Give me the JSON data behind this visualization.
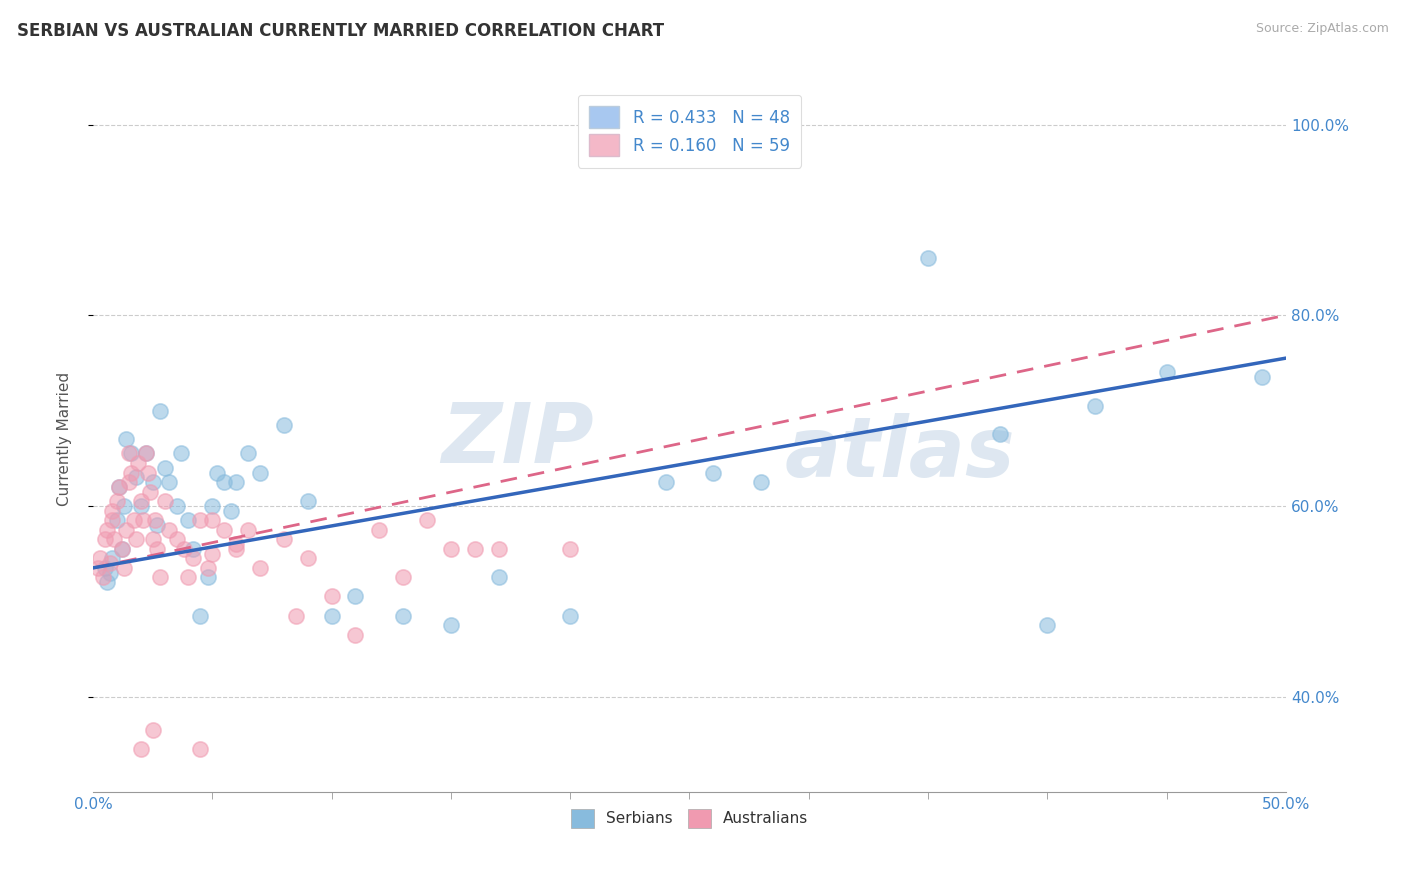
{
  "title": "SERBIAN VS AUSTRALIAN CURRENTLY MARRIED CORRELATION CHART",
  "source": "Source: ZipAtlas.com",
  "ylabel": "Currently Married",
  "legend_entries": [
    {
      "label": "R = 0.433   N = 48",
      "color": "#a8c8f0",
      "edgecolor": "#88aadd"
    },
    {
      "label": "R = 0.160   N = 59",
      "color": "#f4b8c8",
      "edgecolor": "#dd88aa"
    }
  ],
  "legend_bottom": [
    "Serbians",
    "Australians"
  ],
  "serbian_color": "#88bbdd",
  "australian_color": "#f09ab0",
  "serbian_line_color": "#3366bb",
  "australian_line_color": "#dd6688",
  "background_color": "#ffffff",
  "tick_color": "#4488cc",
  "xlim": [
    0.0,
    0.5
  ],
  "ylim": [
    0.3,
    1.04
  ],
  "x_ticks_minor": [
    0.05,
    0.1,
    0.15,
    0.2,
    0.25,
    0.3,
    0.35,
    0.4,
    0.45
  ],
  "y_ticks": [
    0.4,
    0.6,
    0.8,
    1.0
  ],
  "serbian_scatter": [
    [
      0.005,
      0.535
    ],
    [
      0.006,
      0.52
    ],
    [
      0.007,
      0.53
    ],
    [
      0.008,
      0.545
    ],
    [
      0.01,
      0.585
    ],
    [
      0.011,
      0.62
    ],
    [
      0.012,
      0.555
    ],
    [
      0.013,
      0.6
    ],
    [
      0.014,
      0.67
    ],
    [
      0.016,
      0.655
    ],
    [
      0.018,
      0.63
    ],
    [
      0.02,
      0.6
    ],
    [
      0.022,
      0.655
    ],
    [
      0.025,
      0.625
    ],
    [
      0.027,
      0.58
    ],
    [
      0.028,
      0.7
    ],
    [
      0.03,
      0.64
    ],
    [
      0.032,
      0.625
    ],
    [
      0.035,
      0.6
    ],
    [
      0.037,
      0.655
    ],
    [
      0.04,
      0.585
    ],
    [
      0.042,
      0.555
    ],
    [
      0.045,
      0.485
    ],
    [
      0.048,
      0.525
    ],
    [
      0.05,
      0.6
    ],
    [
      0.052,
      0.635
    ],
    [
      0.055,
      0.625
    ],
    [
      0.058,
      0.595
    ],
    [
      0.06,
      0.625
    ],
    [
      0.065,
      0.655
    ],
    [
      0.07,
      0.635
    ],
    [
      0.08,
      0.685
    ],
    [
      0.09,
      0.605
    ],
    [
      0.1,
      0.485
    ],
    [
      0.11,
      0.505
    ],
    [
      0.13,
      0.485
    ],
    [
      0.15,
      0.475
    ],
    [
      0.17,
      0.525
    ],
    [
      0.2,
      0.485
    ],
    [
      0.24,
      0.625
    ],
    [
      0.26,
      0.635
    ],
    [
      0.28,
      0.625
    ],
    [
      0.35,
      0.86
    ],
    [
      0.38,
      0.675
    ],
    [
      0.4,
      0.475
    ],
    [
      0.42,
      0.705
    ],
    [
      0.45,
      0.74
    ],
    [
      0.49,
      0.735
    ]
  ],
  "australian_scatter": [
    [
      0.002,
      0.535
    ],
    [
      0.003,
      0.545
    ],
    [
      0.004,
      0.525
    ],
    [
      0.005,
      0.565
    ],
    [
      0.006,
      0.575
    ],
    [
      0.007,
      0.54
    ],
    [
      0.008,
      0.585
    ],
    [
      0.008,
      0.595
    ],
    [
      0.009,
      0.565
    ],
    [
      0.01,
      0.605
    ],
    [
      0.011,
      0.62
    ],
    [
      0.012,
      0.555
    ],
    [
      0.013,
      0.535
    ],
    [
      0.014,
      0.575
    ],
    [
      0.015,
      0.655
    ],
    [
      0.015,
      0.625
    ],
    [
      0.016,
      0.635
    ],
    [
      0.017,
      0.585
    ],
    [
      0.018,
      0.565
    ],
    [
      0.019,
      0.645
    ],
    [
      0.02,
      0.605
    ],
    [
      0.021,
      0.585
    ],
    [
      0.022,
      0.655
    ],
    [
      0.023,
      0.635
    ],
    [
      0.024,
      0.615
    ],
    [
      0.025,
      0.565
    ],
    [
      0.026,
      0.585
    ],
    [
      0.027,
      0.555
    ],
    [
      0.028,
      0.525
    ],
    [
      0.03,
      0.605
    ],
    [
      0.032,
      0.575
    ],
    [
      0.035,
      0.565
    ],
    [
      0.038,
      0.555
    ],
    [
      0.04,
      0.525
    ],
    [
      0.042,
      0.545
    ],
    [
      0.045,
      0.585
    ],
    [
      0.048,
      0.535
    ],
    [
      0.05,
      0.585
    ],
    [
      0.055,
      0.575
    ],
    [
      0.06,
      0.555
    ],
    [
      0.065,
      0.575
    ],
    [
      0.07,
      0.535
    ],
    [
      0.08,
      0.565
    ],
    [
      0.085,
      0.485
    ],
    [
      0.09,
      0.545
    ],
    [
      0.1,
      0.505
    ],
    [
      0.11,
      0.465
    ],
    [
      0.12,
      0.575
    ],
    [
      0.13,
      0.525
    ],
    [
      0.14,
      0.585
    ],
    [
      0.15,
      0.555
    ],
    [
      0.16,
      0.555
    ],
    [
      0.17,
      0.555
    ],
    [
      0.2,
      0.555
    ],
    [
      0.02,
      0.345
    ],
    [
      0.025,
      0.365
    ],
    [
      0.05,
      0.55
    ],
    [
      0.06,
      0.56
    ],
    [
      0.045,
      0.345
    ]
  ],
  "serbian_line": {
    "x0": 0.0,
    "y0": 0.535,
    "x1": 0.5,
    "y1": 0.755
  },
  "australian_line": {
    "x0": 0.0,
    "y0": 0.535,
    "x1": 0.5,
    "y1": 0.8
  }
}
